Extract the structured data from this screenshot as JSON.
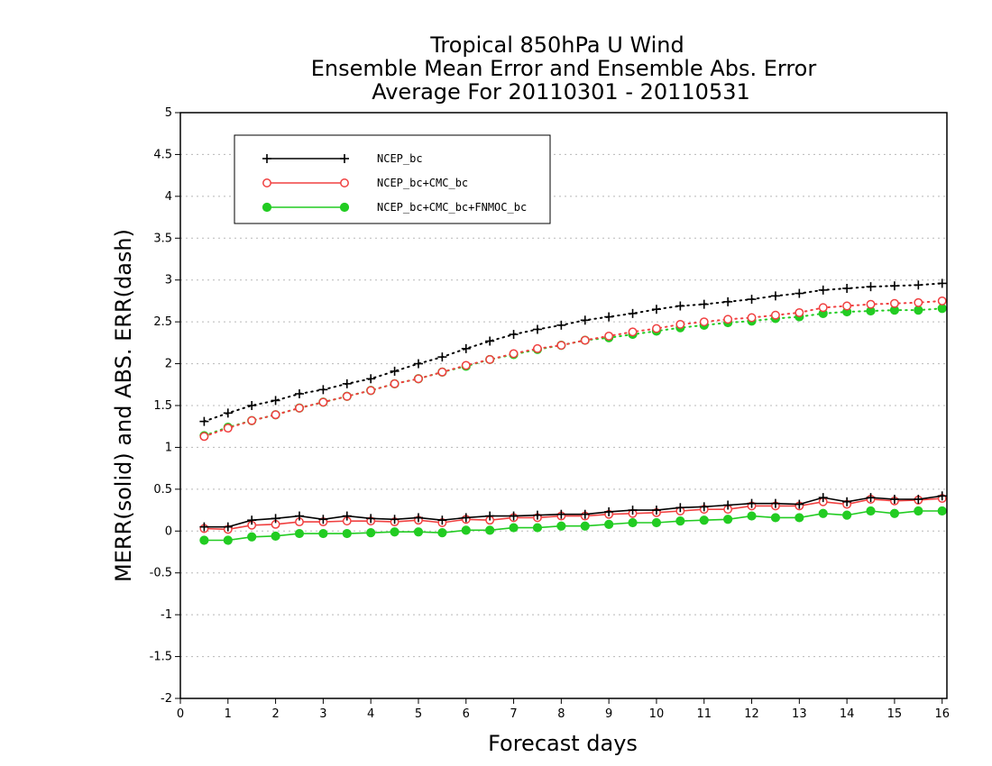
{
  "chart_data": {
    "type": "line",
    "title_lines": [
      "Tropical 850hPa U Wind",
      "Ensemble Mean Error and Ensemble Abs. Error",
      "Average For 20110301 - 20110531"
    ],
    "xlabel": "Forecast days",
    "ylabel": "MERR(solid) and ABS. ERR(dash)",
    "xlim": [
      0,
      16.1
    ],
    "ylim": [
      -2,
      5
    ],
    "x_ticks": [
      0,
      1,
      2,
      3,
      4,
      5,
      6,
      7,
      8,
      9,
      10,
      11,
      12,
      13,
      14,
      15,
      16
    ],
    "y_ticks": [
      -2,
      -1.5,
      -1,
      -0.5,
      0,
      0.5,
      1,
      1.5,
      2,
      2.5,
      3,
      3.5,
      4,
      4.5,
      5
    ],
    "grid": true,
    "legend_position": "top-left",
    "x": [
      0.5,
      1,
      1.5,
      2,
      2.5,
      3,
      3.5,
      4,
      4.5,
      5,
      5.5,
      6,
      6.5,
      7,
      7.5,
      8,
      8.5,
      9,
      9.5,
      10,
      10.5,
      11,
      11.5,
      12,
      12.5,
      13,
      13.5,
      14,
      14.5,
      15,
      15.5,
      16
    ],
    "series": [
      {
        "name": "NCEP_bc",
        "color": "#000000",
        "marker": "plus",
        "merr": [
          0.05,
          0.05,
          0.13,
          0.15,
          0.18,
          0.14,
          0.18,
          0.15,
          0.14,
          0.16,
          0.13,
          0.16,
          0.18,
          0.18,
          0.19,
          0.2,
          0.2,
          0.23,
          0.25,
          0.25,
          0.28,
          0.29,
          0.31,
          0.33,
          0.33,
          0.32,
          0.4,
          0.35,
          0.4,
          0.38,
          0.38,
          0.42
        ],
        "abs_err": [
          1.31,
          1.41,
          1.5,
          1.56,
          1.64,
          1.69,
          1.76,
          1.82,
          1.91,
          2.0,
          2.08,
          2.18,
          2.27,
          2.35,
          2.41,
          2.46,
          2.52,
          2.56,
          2.6,
          2.65,
          2.69,
          2.71,
          2.74,
          2.77,
          2.81,
          2.84,
          2.88,
          2.9,
          2.92,
          2.93,
          2.94,
          2.96
        ]
      },
      {
        "name": "NCEP_bc+CMC_bc",
        "color": "#f04040",
        "marker": "open-circle",
        "merr": [
          0.03,
          0.02,
          0.07,
          0.08,
          0.11,
          0.11,
          0.12,
          0.12,
          0.11,
          0.13,
          0.1,
          0.14,
          0.13,
          0.16,
          0.16,
          0.18,
          0.18,
          0.2,
          0.21,
          0.22,
          0.24,
          0.26,
          0.26,
          0.3,
          0.3,
          0.3,
          0.35,
          0.32,
          0.38,
          0.36,
          0.37,
          0.39
        ],
        "abs_err": [
          1.13,
          1.23,
          1.32,
          1.39,
          1.47,
          1.54,
          1.61,
          1.68,
          1.76,
          1.82,
          1.9,
          1.98,
          2.05,
          2.12,
          2.18,
          2.22,
          2.28,
          2.33,
          2.38,
          2.42,
          2.47,
          2.5,
          2.53,
          2.55,
          2.58,
          2.61,
          2.67,
          2.69,
          2.71,
          2.72,
          2.73,
          2.75
        ]
      },
      {
        "name": "NCEP_bc+CMC_bc+FNMOC_bc",
        "color": "#22cc22",
        "marker": "filled-circle",
        "merr": [
          -0.11,
          -0.11,
          -0.07,
          -0.06,
          -0.03,
          -0.03,
          -0.03,
          -0.02,
          -0.01,
          -0.01,
          -0.02,
          0.01,
          0.01,
          0.04,
          0.04,
          0.06,
          0.06,
          0.08,
          0.1,
          0.1,
          0.12,
          0.13,
          0.14,
          0.18,
          0.16,
          0.16,
          0.21,
          0.19,
          0.24,
          0.21,
          0.24,
          0.24
        ],
        "abs_err": [
          1.14,
          1.24,
          1.32,
          1.39,
          1.47,
          1.54,
          1.61,
          1.68,
          1.76,
          1.82,
          1.9,
          1.97,
          2.05,
          2.11,
          2.17,
          2.22,
          2.28,
          2.31,
          2.35,
          2.39,
          2.43,
          2.46,
          2.49,
          2.51,
          2.54,
          2.56,
          2.6,
          2.62,
          2.63,
          2.64,
          2.64,
          2.66
        ]
      }
    ]
  }
}
